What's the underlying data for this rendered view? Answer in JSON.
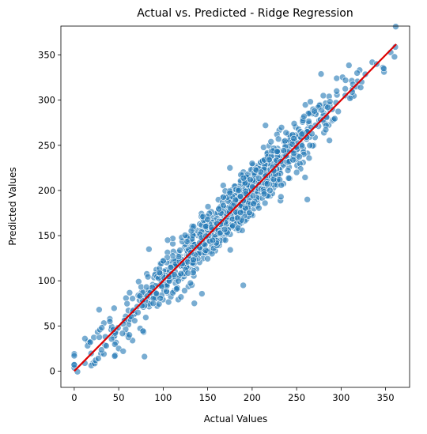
{
  "chart_data": {
    "type": "scatter",
    "title": "Actual vs. Predicted - Ridge Regression",
    "xlabel": "Actual Values",
    "ylabel": "Predicted Values",
    "xlim": [
      -15,
      377
    ],
    "ylim": [
      -18,
      382
    ],
    "xticks": [
      0,
      50,
      100,
      150,
      200,
      250,
      300,
      350
    ],
    "yticks": [
      0,
      50,
      100,
      150,
      200,
      250,
      300,
      350
    ],
    "grid": false,
    "legend": "none",
    "point_color": "#1f77b4",
    "point_edge_color": "#ffffff",
    "point_alpha": 0.6,
    "reference_line": {
      "x": [
        0,
        362
      ],
      "y": [
        0,
        362
      ],
      "color": "#dd0000"
    },
    "points": {
      "description_count": 1000,
      "x_mean": 175,
      "x_sd": 62,
      "x_min": 0,
      "x_max": 362,
      "residual_sd": 15,
      "notable": [
        [
          0,
          19
        ],
        [
          0,
          17
        ],
        [
          0,
          7
        ],
        [
          12,
          36
        ],
        [
          15,
          28
        ],
        [
          18,
          32
        ],
        [
          24,
          12
        ],
        [
          27,
          14
        ],
        [
          28,
          68
        ],
        [
          31,
          48
        ],
        [
          35,
          38
        ],
        [
          36,
          28
        ],
        [
          40,
          55
        ],
        [
          44,
          46
        ],
        [
          50,
          25
        ],
        [
          55,
          22
        ],
        [
          62,
          40
        ],
        [
          84,
          135
        ],
        [
          100,
          122
        ],
        [
          105,
          145
        ],
        [
          120,
          82
        ],
        [
          135,
          75
        ],
        [
          150,
          168
        ],
        [
          170,
          145
        ],
        [
          175,
          225
        ],
        [
          190,
          95
        ],
        [
          200,
          230
        ],
        [
          215,
          272
        ],
        [
          220,
          200
        ],
        [
          250,
          220
        ],
        [
          262,
          190
        ],
        [
          270,
          288
        ],
        [
          280,
          305
        ],
        [
          285,
          292
        ],
        [
          295,
          310
        ],
        [
          305,
          322
        ],
        [
          310,
          302
        ],
        [
          318,
          330
        ],
        [
          322,
          314
        ],
        [
          335,
          342
        ],
        [
          340,
          340
        ],
        [
          348,
          335
        ],
        [
          360,
          348
        ]
      ]
    }
  }
}
